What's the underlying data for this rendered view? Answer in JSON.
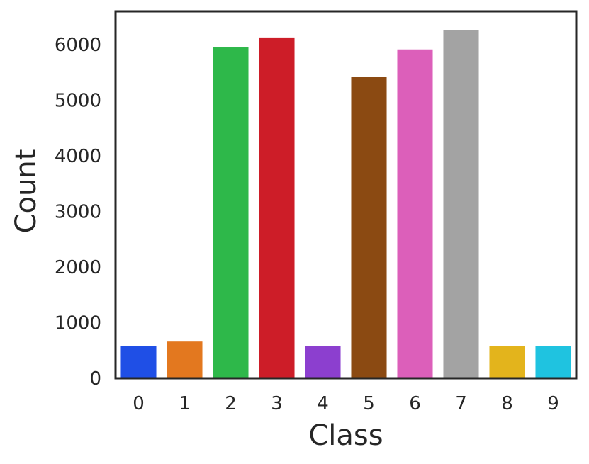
{
  "chart_data": {
    "type": "bar",
    "title": "",
    "xlabel": "Class",
    "ylabel": "Count",
    "categories": [
      "0",
      "1",
      "2",
      "3",
      "4",
      "5",
      "6",
      "7",
      "8",
      "9"
    ],
    "values": [
      585,
      660,
      5950,
      6130,
      575,
      5420,
      5915,
      6265,
      580,
      585
    ],
    "colors": [
      "#1f4fe6",
      "#e3781f",
      "#2eb84a",
      "#cd1d28",
      "#8c3fcf",
      "#8b4a12",
      "#dc5fba",
      "#a3a3a3",
      "#e3b41c",
      "#1fc3e0"
    ],
    "yticks": [
      "0",
      "1000",
      "2000",
      "3000",
      "4000",
      "5000",
      "6000"
    ],
    "ylim": [
      0,
      6600
    ],
    "grid": false,
    "legend": "none"
  }
}
